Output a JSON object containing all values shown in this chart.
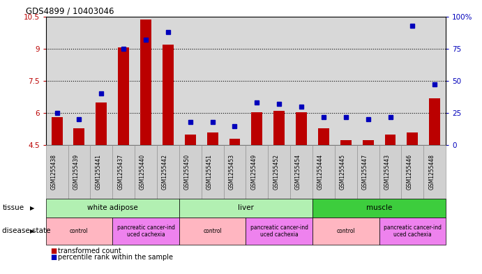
{
  "title": "GDS4899 / 10403046",
  "samples": [
    "GSM1255438",
    "GSM1255439",
    "GSM1255441",
    "GSM1255437",
    "GSM1255440",
    "GSM1255442",
    "GSM1255450",
    "GSM1255451",
    "GSM1255453",
    "GSM1255449",
    "GSM1255452",
    "GSM1255454",
    "GSM1255444",
    "GSM1255445",
    "GSM1255447",
    "GSM1255443",
    "GSM1255446",
    "GSM1255448"
  ],
  "red_values": [
    5.8,
    5.3,
    6.5,
    9.05,
    10.35,
    9.2,
    5.0,
    5.1,
    4.8,
    6.05,
    6.1,
    6.05,
    5.3,
    4.75,
    4.75,
    5.0,
    5.1,
    6.7
  ],
  "blue_values": [
    25,
    20,
    40,
    75,
    82,
    88,
    18,
    18,
    15,
    33,
    32,
    30,
    22,
    22,
    20,
    22,
    93,
    47
  ],
  "ylim_left": [
    4.5,
    10.5
  ],
  "ylim_right": [
    0,
    100
  ],
  "yticks_left": [
    4.5,
    6.0,
    7.5,
    9.0,
    10.5
  ],
  "yticks_right": [
    0,
    25,
    50,
    75,
    100
  ],
  "ytick_labels_left": [
    "4.5",
    "6",
    "7.5",
    "9",
    "10.5"
  ],
  "ytick_labels_right": [
    "0",
    "25",
    "50",
    "75",
    "100%"
  ],
  "tissue_groups": [
    {
      "label": "white adipose",
      "start": 0,
      "end": 6,
      "color": "#b2f0b2"
    },
    {
      "label": "liver",
      "start": 6,
      "end": 12,
      "color": "#b2f0b2"
    },
    {
      "label": "muscle",
      "start": 12,
      "end": 18,
      "color": "#3dcd3d"
    }
  ],
  "disease_groups": [
    {
      "label": "control",
      "start": 0,
      "end": 3,
      "color": "#ffb6c1"
    },
    {
      "label": "pancreatic cancer-ind\nuced cachexia",
      "start": 3,
      "end": 6,
      "color": "#ee82ee"
    },
    {
      "label": "control",
      "start": 6,
      "end": 9,
      "color": "#ffb6c1"
    },
    {
      "label": "pancreatic cancer-ind\nuced cachexia",
      "start": 9,
      "end": 12,
      "color": "#ee82ee"
    },
    {
      "label": "control",
      "start": 12,
      "end": 15,
      "color": "#ffb6c1"
    },
    {
      "label": "pancreatic cancer-ind\nuced cachexia",
      "start": 15,
      "end": 18,
      "color": "#ee82ee"
    }
  ],
  "bar_color": "#BB0000",
  "dot_color": "#0000BB",
  "bg_color": "#FFFFFF",
  "plot_bg": "#D8D8D8",
  "legend_red": "transformed count",
  "legend_blue": "percentile rank within the sample",
  "tissue_label": "tissue",
  "disease_label": "disease state",
  "grid_yticks": [
    6.0,
    7.5,
    9.0
  ]
}
